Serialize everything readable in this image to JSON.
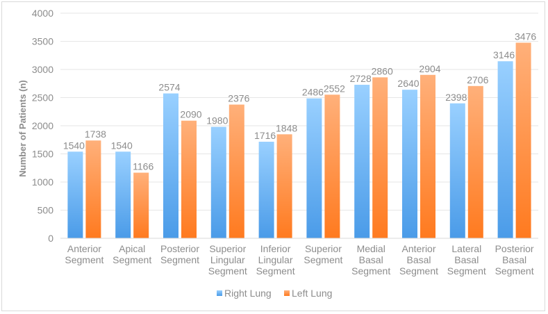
{
  "chart_data": {
    "type": "bar",
    "title": "",
    "xlabel": "",
    "ylabel": "Number of Patients (n)",
    "ylim": [
      0,
      4000
    ],
    "ytick_step": 500,
    "grid": true,
    "legend_position": "bottom",
    "categories": [
      "Anterior Segment",
      "Apical Segment",
      "Posterior Segment",
      "Superior Lingular Segment",
      "Inferior Lingular Segment",
      "Superior Segment",
      "Medial Basal Segment",
      "Anterior Basal Segment",
      "Lateral Basal Segment",
      "Posterior Basal Segment"
    ],
    "series": [
      {
        "name": "Right Lung",
        "color_top": "#99d0ff",
        "color_bottom": "#4a9be8",
        "values": [
          1540,
          1540,
          2574,
          1980,
          1716,
          2486,
          2728,
          2640,
          2398,
          3146
        ]
      },
      {
        "name": "Left Lung",
        "color_top": "#ffb07a",
        "color_bottom": "#ff7a1f",
        "values": [
          1738,
          1166,
          2090,
          2376,
          1848,
          2552,
          2860,
          2904,
          2706,
          3476
        ]
      }
    ]
  }
}
